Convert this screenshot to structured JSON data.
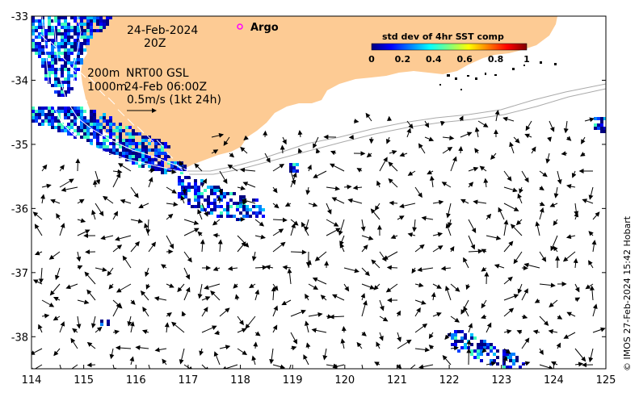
{
  "map": {
    "x_ticks": [
      "114",
      "115",
      "116",
      "117",
      "118",
      "119",
      "120",
      "121",
      "122",
      "123",
      "124",
      "125"
    ],
    "y_ticks": [
      "-33",
      "-34",
      "-35",
      "-36",
      "-37",
      "-38"
    ],
    "lon_range": [
      114,
      125
    ],
    "lat_range": [
      -38.5,
      -33
    ],
    "land_color": "#FDCB94",
    "date_line1": "24-Feb-2024",
    "date_line2": "20Z",
    "depth_200": "200m",
    "depth_1000": "1000m",
    "product": "NRT00 GSL",
    "product_time": "24-Feb 06:00Z",
    "scale_label": "0.5m/s (1kt 24h)",
    "argo_label": "Argo",
    "argo_color": "#ff00ff",
    "colorbar": {
      "title": "std dev of 4hr SST comp",
      "ticks": [
        "0",
        "0.2",
        "0.4",
        "0.6",
        "0.8",
        "1"
      ],
      "colors": [
        "#00007f",
        "#0000ff",
        "#007fff",
        "#00ffff",
        "#7fff7f",
        "#ffff00",
        "#ff7f00",
        "#ff0000",
        "#7f0000"
      ]
    },
    "credit": "© IMOS 27-Feb-2024 15:42 Hobart"
  }
}
